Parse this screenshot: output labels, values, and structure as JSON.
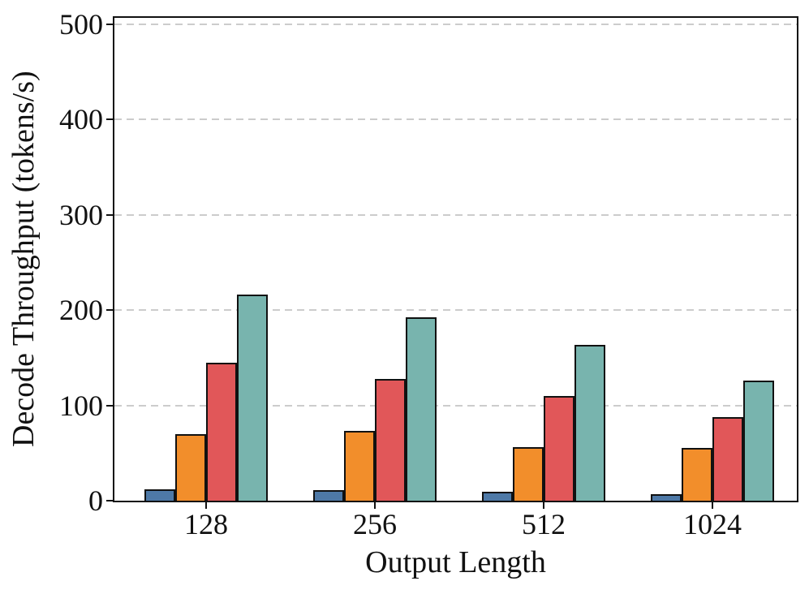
{
  "chart_data": {
    "type": "bar",
    "title": "",
    "xlabel": "Output Length",
    "ylabel": "Decode Throughput (tokens/s)",
    "categories": [
      "128",
      "256",
      "512",
      "1024"
    ],
    "series": [
      {
        "name": "series-blue",
        "color": "#4E79A7",
        "values": [
          12,
          11,
          9,
          7
        ]
      },
      {
        "name": "series-orange",
        "color": "#F28E2B",
        "values": [
          70,
          73,
          56,
          55
        ]
      },
      {
        "name": "series-red",
        "color": "#E15759",
        "values": [
          145,
          128,
          110,
          88
        ]
      },
      {
        "name": "series-teal",
        "color": "#78B4AE",
        "values": [
          216,
          192,
          163,
          126
        ]
      }
    ],
    "yticks": [
      0,
      100,
      200,
      300,
      400,
      500
    ],
    "ylim": [
      0,
      506
    ],
    "grid": "horizontal-dashed",
    "gridline_color": "#cccccc",
    "axis_color": "#111111",
    "bar_edge_color": "#111111",
    "legend": "none"
  }
}
